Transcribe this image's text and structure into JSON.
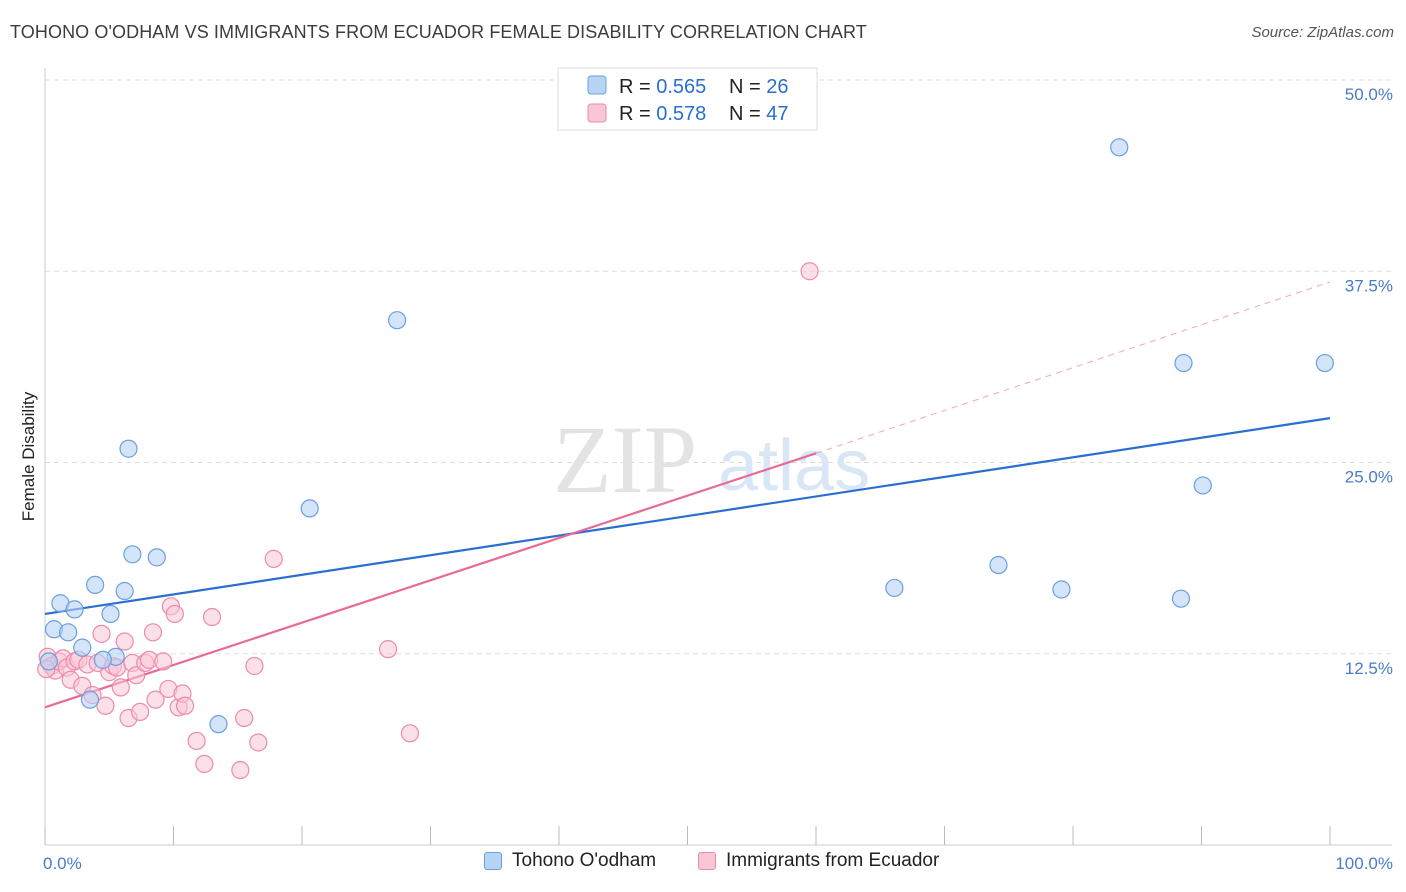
{
  "title": "TOHONO O'ODHAM VS IMMIGRANTS FROM ECUADOR FEMALE DISABILITY CORRELATION CHART",
  "source": "Source: ZipAtlas.com",
  "watermark": {
    "zip": "ZIP",
    "atlas": "atlas"
  },
  "colors": {
    "blue_fill": "#b8d4f5",
    "blue_stroke": "#6b9fe0",
    "blue_line": "#2a6fcf",
    "pink_fill": "#f9c6d6",
    "pink_stroke": "#ee8aab",
    "pink_line": "#e76a98",
    "grid": "#dddddd",
    "tick_text": "#4a7bc8"
  },
  "legend": {
    "rows": [
      {
        "r_label": "R = ",
        "r_value": "0.565",
        "n_label": "N = ",
        "n_value": "26"
      },
      {
        "r_label": "R = ",
        "r_value": "0.578",
        "n_label": "N = ",
        "n_value": "47"
      }
    ]
  },
  "chart_data": {
    "type": "scatter",
    "title": "TOHONO O'ODHAM VS IMMIGRANTS FROM ECUADOR FEMALE DISABILITY CORRELATION CHART",
    "xlabel": "",
    "ylabel": "Female Disability",
    "xlim": [
      0,
      100
    ],
    "ylim": [
      0,
      50
    ],
    "x_tick_labels": [
      "0.0%",
      "100.0%"
    ],
    "y_ticks": [
      12.5,
      25.0,
      37.5,
      50.0
    ],
    "y_tick_labels": [
      "12.5%",
      "25.0%",
      "37.5%",
      "50.0%"
    ],
    "grid": true,
    "legend_position": "top-center",
    "series": [
      {
        "name": "Tohono O'odham",
        "r": 0.565,
        "n": 26,
        "trend": {
          "x0": 0,
          "y0": 15.1,
          "x1": 100,
          "y1": 27.9
        },
        "points": [
          [
            0.7,
            14.1
          ],
          [
            1.2,
            15.8
          ],
          [
            1.8,
            13.9
          ],
          [
            2.3,
            15.4
          ],
          [
            2.9,
            12.9
          ],
          [
            3.5,
            9.5
          ],
          [
            3.9,
            17.0
          ],
          [
            5.1,
            15.1
          ],
          [
            5.5,
            12.3
          ],
          [
            6.2,
            16.6
          ],
          [
            6.5,
            25.9
          ],
          [
            4.5,
            12.1
          ],
          [
            6.8,
            19.0
          ],
          [
            8.7,
            18.8
          ],
          [
            13.5,
            7.9
          ],
          [
            20.6,
            22.0
          ],
          [
            27.4,
            34.3
          ],
          [
            66.1,
            16.8
          ],
          [
            74.2,
            18.3
          ],
          [
            79.1,
            16.7
          ],
          [
            83.6,
            45.6
          ],
          [
            88.4,
            16.1
          ],
          [
            88.6,
            31.5
          ],
          [
            90.1,
            23.5
          ],
          [
            99.6,
            31.5
          ],
          [
            0.3,
            12.0
          ]
        ]
      },
      {
        "name": "Immigrants from Ecuador",
        "r": 0.578,
        "n": 47,
        "trend_solid": {
          "x0": 0,
          "y0": 9.0,
          "x1": 60,
          "y1": 25.6
        },
        "trend_dashed": {
          "x0": 60,
          "y0": 25.6,
          "x1": 100,
          "y1": 36.8
        },
        "points": [
          [
            0.2,
            12.3
          ],
          [
            0.5,
            11.7
          ],
          [
            0.8,
            11.4
          ],
          [
            1.1,
            12.0
          ],
          [
            1.4,
            12.2
          ],
          [
            1.7,
            11.6
          ],
          [
            2.0,
            10.8
          ],
          [
            2.3,
            12.0
          ],
          [
            2.6,
            12.1
          ],
          [
            2.9,
            10.4
          ],
          [
            3.3,
            11.8
          ],
          [
            3.7,
            9.8
          ],
          [
            4.1,
            11.9
          ],
          [
            4.4,
            13.8
          ],
          [
            4.7,
            9.1
          ],
          [
            5.0,
            11.3
          ],
          [
            5.3,
            11.7
          ],
          [
            5.6,
            11.6
          ],
          [
            5.9,
            10.3
          ],
          [
            6.2,
            13.3
          ],
          [
            6.5,
            8.3
          ],
          [
            6.8,
            11.9
          ],
          [
            7.1,
            11.1
          ],
          [
            7.4,
            8.7
          ],
          [
            7.8,
            11.9
          ],
          [
            8.1,
            12.1
          ],
          [
            8.4,
            13.9
          ],
          [
            8.6,
            9.5
          ],
          [
            9.2,
            12.0
          ],
          [
            9.6,
            10.2
          ],
          [
            9.8,
            15.6
          ],
          [
            10.1,
            15.1
          ],
          [
            10.4,
            9.0
          ],
          [
            10.7,
            9.9
          ],
          [
            10.9,
            9.1
          ],
          [
            11.8,
            6.8
          ],
          [
            12.4,
            5.3
          ],
          [
            13.0,
            14.9
          ],
          [
            15.2,
            4.9
          ],
          [
            15.5,
            8.3
          ],
          [
            16.3,
            11.7
          ],
          [
            16.6,
            6.7
          ],
          [
            17.8,
            18.7
          ],
          [
            26.7,
            12.8
          ],
          [
            28.4,
            7.3
          ],
          [
            59.5,
            37.5
          ],
          [
            0.1,
            11.5
          ]
        ]
      }
    ]
  }
}
